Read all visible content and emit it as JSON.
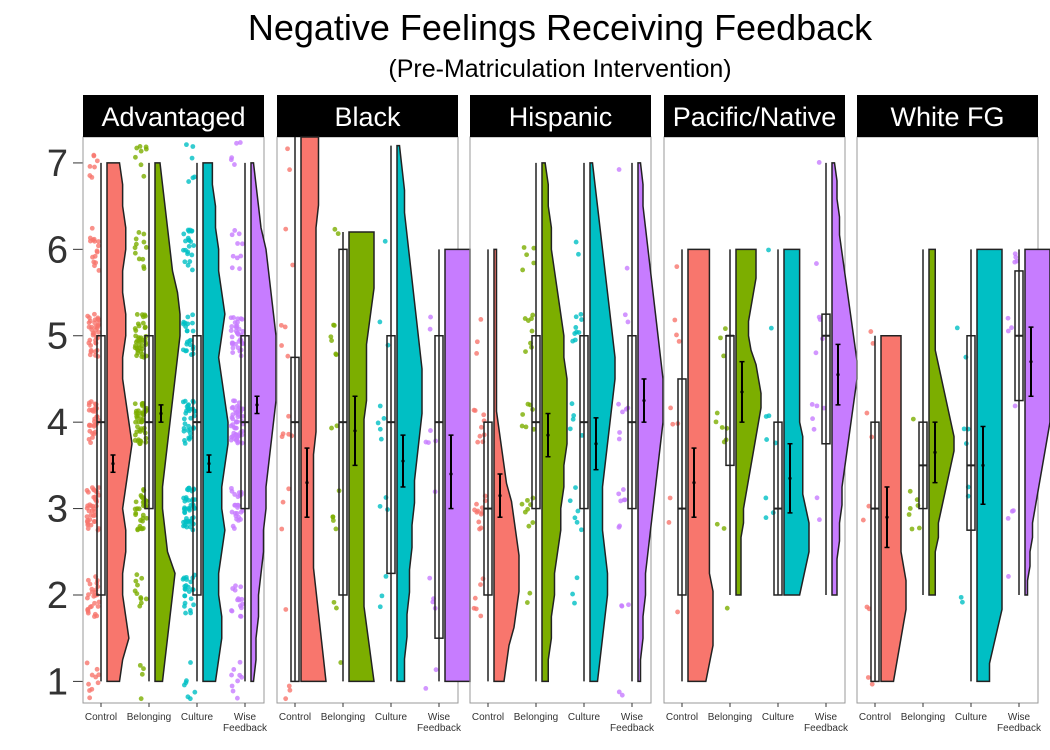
{
  "chart_data": {
    "type": "raincloud",
    "title": "Negative Feelings Receiving Feedback",
    "subtitle": "(Pre-Matriculation Intervention)",
    "xlabel": "",
    "ylabel": "",
    "ylim": [
      0.75,
      7.3
    ],
    "yticks": [
      "1",
      "2",
      "3",
      "4",
      "5",
      "6",
      "7"
    ],
    "categories": [
      "Control",
      "Belonging",
      "Culture",
      "Wise\nFeedback"
    ],
    "colors": [
      "#F8766D",
      "#7CAE00",
      "#00BFC4",
      "#C77CFF"
    ],
    "grid": false,
    "legend": "none",
    "panels": [
      {
        "name": "Advantaged",
        "n_points": [
          170,
          150,
          160,
          150
        ],
        "groups": [
          {
            "box": [
              2,
              4,
              5,
              1,
              7
            ],
            "mean": 3.52,
            "ci": [
              3.42,
              3.62
            ],
            "density": [
              0.4,
              0.5,
              0.7,
              0.6,
              0.5,
              0.5,
              0.6,
              0.6,
              0.5,
              0.6,
              0.7,
              0.8,
              0.7,
              0.6,
              0.5,
              0.5,
              0.6,
              0.6,
              0.5,
              0.5,
              0.6,
              0.6,
              0.5,
              0.5,
              0.4
            ]
          },
          {
            "box": [
              3,
              4,
              5,
              1,
              7
            ],
            "mean": 4.1,
            "ci": [
              4.0,
              4.2
            ],
            "density": [
              0.3,
              0.4,
              0.5,
              0.6,
              0.7,
              0.8,
              0.5,
              0.4,
              0.3,
              0.3,
              0.4,
              0.5,
              0.6,
              0.7,
              0.8,
              0.9,
              1.0,
              1.0,
              0.9,
              0.7,
              0.6,
              0.5,
              0.4,
              0.3,
              0.2
            ]
          },
          {
            "box": [
              2,
              4,
              5,
              1,
              7
            ],
            "mean": 3.52,
            "ci": [
              3.42,
              3.62
            ],
            "density": [
              0.4,
              0.5,
              0.6,
              0.6,
              0.5,
              0.5,
              0.6,
              0.7,
              0.6,
              0.6,
              0.7,
              0.8,
              0.8,
              0.7,
              0.6,
              0.5,
              0.6,
              0.7,
              0.6,
              0.5,
              0.5,
              0.4,
              0.4,
              0.3,
              0.3
            ]
          },
          {
            "box": [
              3,
              4,
              5,
              1,
              7
            ],
            "mean": 4.2,
            "ci": [
              4.1,
              4.3
            ],
            "density": [
              0.1,
              0.2,
              0.2,
              0.3,
              0.3,
              0.4,
              0.5,
              0.5,
              0.6,
              0.6,
              0.7,
              0.8,
              0.9,
              1.0,
              1.0,
              1.0,
              1.0,
              0.9,
              0.8,
              0.7,
              0.6,
              0.4,
              0.3,
              0.2,
              0.1
            ]
          }
        ]
      },
      {
        "name": "Black",
        "n_points": [
          20,
          18,
          14,
          13
        ],
        "groups": [
          {
            "box": [
              1,
              4,
              4.75,
              1,
              7.3
            ],
            "mean": 3.3,
            "ci": [
              2.9,
              3.7
            ],
            "density": [
              1.0,
              0.9,
              0.8,
              0.7,
              0.6,
              0.5,
              0.5,
              0.5,
              0.5,
              0.5,
              0.5,
              0.6,
              0.6,
              0.6,
              0.6,
              0.6,
              0.6,
              0.6,
              0.6,
              0.6,
              0.6,
              0.7,
              0.7,
              0.7,
              0.7
            ]
          },
          {
            "box": [
              2,
              4,
              6,
              1,
              6.2
            ],
            "mean": 3.9,
            "ci": [
              3.5,
              4.3
            ],
            "density": [
              1.0,
              0.9,
              0.8,
              0.7,
              0.6,
              0.6,
              0.6,
              0.6,
              0.6,
              0.6,
              0.6,
              0.6,
              0.6,
              0.6,
              0.6,
              0.7,
              0.7,
              0.7,
              0.7,
              0.8,
              0.9,
              1.0,
              1.0,
              1.0,
              1.0
            ]
          },
          {
            "box": [
              2.25,
              4,
              5,
              1,
              7.2
            ],
            "mean": 3.55,
            "ci": [
              3.25,
              3.85
            ],
            "density": [
              0.3,
              0.3,
              0.4,
              0.4,
              0.5,
              0.5,
              0.6,
              0.6,
              0.7,
              0.7,
              0.8,
              0.9,
              1.0,
              1.0,
              1.0,
              0.9,
              0.8,
              0.7,
              0.6,
              0.5,
              0.4,
              0.3,
              0.3,
              0.2,
              0.1
            ]
          },
          {
            "box": [
              1.5,
              4,
              5,
              1,
              6
            ],
            "mean": 3.4,
            "ci": [
              3.0,
              3.85
            ],
            "density": [
              1.0,
              1.0,
              1.0,
              1.0,
              1.0,
              1.0,
              1.0,
              1.0,
              1.0,
              1.0,
              1.0,
              1.0,
              1.0,
              1.0,
              1.0,
              1.0,
              1.0,
              1.0,
              1.0,
              1.0,
              1.0,
              1.0,
              1.0,
              1.0,
              1.0
            ]
          }
        ]
      },
      {
        "name": "Hispanic",
        "n_points": [
          30,
          30,
          25,
          22
        ],
        "groups": [
          {
            "box": [
              2,
              3,
              4,
              1,
              6
            ],
            "mean": 3.15,
            "ci": [
              2.9,
              3.4
            ],
            "density": [
              0.4,
              0.5,
              0.6,
              0.8,
              0.9,
              1.0,
              1.0,
              1.0,
              0.9,
              0.8,
              0.7,
              0.5,
              0.4,
              0.3,
              0.2,
              0.1,
              0.1,
              0.1,
              0.1,
              0.1,
              0.1,
              0.1,
              0.1,
              0.1,
              0.1
            ]
          },
          {
            "box": [
              3,
              4,
              5,
              1,
              7
            ],
            "mean": 3.85,
            "ci": [
              3.6,
              4.1
            ],
            "density": [
              0.2,
              0.2,
              0.3,
              0.3,
              0.4,
              0.4,
              0.5,
              0.6,
              0.6,
              0.7,
              0.7,
              0.8,
              0.8,
              0.8,
              0.8,
              0.7,
              0.7,
              0.6,
              0.5,
              0.4,
              0.3,
              0.3,
              0.2,
              0.2,
              0.1
            ]
          },
          {
            "box": [
              3,
              4,
              5,
              1,
              7
            ],
            "mean": 3.75,
            "ci": [
              3.45,
              4.05
            ],
            "density": [
              0.3,
              0.4,
              0.5,
              0.6,
              0.7,
              0.7,
              0.6,
              0.5,
              0.5,
              0.5,
              0.6,
              0.7,
              0.8,
              0.9,
              1.0,
              1.0,
              0.9,
              0.8,
              0.7,
              0.6,
              0.5,
              0.4,
              0.3,
              0.2,
              0.1
            ]
          },
          {
            "box": [
              3,
              4,
              5,
              1,
              7
            ],
            "mean": 4.25,
            "ci": [
              4.0,
              4.5
            ],
            "density": [
              0.1,
              0.1,
              0.2,
              0.2,
              0.3,
              0.3,
              0.4,
              0.5,
              0.6,
              0.7,
              0.8,
              0.9,
              1.0,
              1.0,
              1.0,
              0.9,
              0.8,
              0.7,
              0.6,
              0.5,
              0.4,
              0.3,
              0.2,
              0.2,
              0.1
            ]
          }
        ]
      },
      {
        "name": "Pacific/Native",
        "n_points": [
          10,
          12,
          9,
          13
        ],
        "groups": [
          {
            "box": [
              2,
              3,
              4.5,
              1,
              6
            ],
            "mean": 3.3,
            "ci": [
              2.9,
              3.7
            ],
            "density": [
              0.5,
              0.6,
              0.7,
              0.7,
              0.7,
              0.7,
              0.6,
              0.6,
              0.6,
              0.6,
              0.6,
              0.6,
              0.6,
              0.6,
              0.6,
              0.6,
              0.6,
              0.6,
              0.6,
              0.6,
              0.6,
              0.6,
              0.6,
              0.6,
              0.6
            ]
          },
          {
            "box": [
              3.5,
              5,
              5,
              2,
              6
            ],
            "mean": 4.35,
            "ci": [
              4.0,
              4.7
            ],
            "density": [
              0.2,
              0.2,
              0.2,
              0.2,
              0.2,
              0.3,
              0.3,
              0.4,
              0.5,
              0.6,
              0.7,
              0.8,
              0.9,
              1.0,
              1.0,
              0.9,
              0.8,
              0.6,
              0.5,
              0.5,
              0.6,
              0.7,
              0.8,
              0.8,
              0.8
            ]
          },
          {
            "box": [
              2,
              3,
              4,
              2,
              6
            ],
            "mean": 3.35,
            "ci": [
              2.95,
              3.75
            ],
            "density": [
              0.5,
              0.6,
              0.7,
              0.8,
              0.8,
              0.8,
              0.7,
              0.6,
              0.6,
              0.6,
              0.6,
              0.6,
              0.5,
              0.5,
              0.5,
              0.5,
              0.5,
              0.5,
              0.5,
              0.5,
              0.5,
              0.5,
              0.5,
              0.5,
              0.5
            ]
          },
          {
            "box": [
              3.75,
              5,
              5.25,
              2,
              7
            ],
            "mean": 4.55,
            "ci": [
              4.2,
              4.9
            ],
            "density": [
              0.2,
              0.2,
              0.2,
              0.3,
              0.3,
              0.4,
              0.4,
              0.5,
              0.6,
              0.7,
              0.8,
              0.9,
              1.0,
              1.0,
              0.9,
              0.8,
              0.7,
              0.6,
              0.5,
              0.4,
              0.3,
              0.3,
              0.2,
              0.2,
              0.1
            ]
          }
        ]
      },
      {
        "name": "White FG",
        "n_points": [
          10,
          8,
          9,
          12
        ],
        "groups": [
          {
            "box": [
              1,
              3,
              4,
              1,
              5
            ],
            "mean": 2.9,
            "ci": [
              2.55,
              3.25
            ],
            "density": [
              0.5,
              0.6,
              0.7,
              0.8,
              0.9,
              1.0,
              1.0,
              1.0,
              0.9,
              0.8,
              0.8,
              0.8,
              0.8,
              0.8,
              0.8,
              0.8,
              0.8,
              0.8,
              0.8,
              0.8,
              0.8,
              0.8,
              0.8,
              0.8,
              0.8
            ]
          },
          {
            "box": [
              3,
              3.5,
              4,
              2,
              6
            ],
            "mean": 3.65,
            "ci": [
              3.3,
              4.0
            ],
            "density": [
              0.2,
              0.2,
              0.2,
              0.2,
              0.3,
              0.3,
              0.4,
              0.5,
              0.6,
              0.7,
              0.8,
              0.8,
              0.7,
              0.6,
              0.5,
              0.4,
              0.3,
              0.2,
              0.2,
              0.2,
              0.2,
              0.2,
              0.2,
              0.2,
              0.2
            ]
          },
          {
            "box": [
              2.75,
              3.5,
              5,
              1,
              6
            ],
            "mean": 3.5,
            "ci": [
              3.05,
              3.95
            ],
            "density": [
              0.3,
              0.3,
              0.4,
              0.5,
              0.6,
              0.6,
              0.6,
              0.6,
              0.6,
              0.6,
              0.6,
              0.6,
              0.6,
              0.6,
              0.6,
              0.6,
              0.6,
              0.6,
              0.6,
              0.6,
              0.6,
              0.6,
              0.6,
              0.6,
              0.6
            ]
          },
          {
            "box": [
              4.25,
              5,
              5.75,
              2,
              6
            ],
            "mean": 4.7,
            "ci": [
              4.3,
              5.1
            ],
            "density": [
              0.1,
              0.1,
              0.2,
              0.2,
              0.3,
              0.3,
              0.4,
              0.5,
              0.6,
              0.7,
              0.8,
              0.9,
              1.0,
              1.0,
              1.0,
              1.0,
              1.0,
              1.0,
              1.0,
              1.0,
              1.0,
              1.0,
              1.0,
              1.0,
              1.0
            ]
          }
        ]
      }
    ]
  }
}
